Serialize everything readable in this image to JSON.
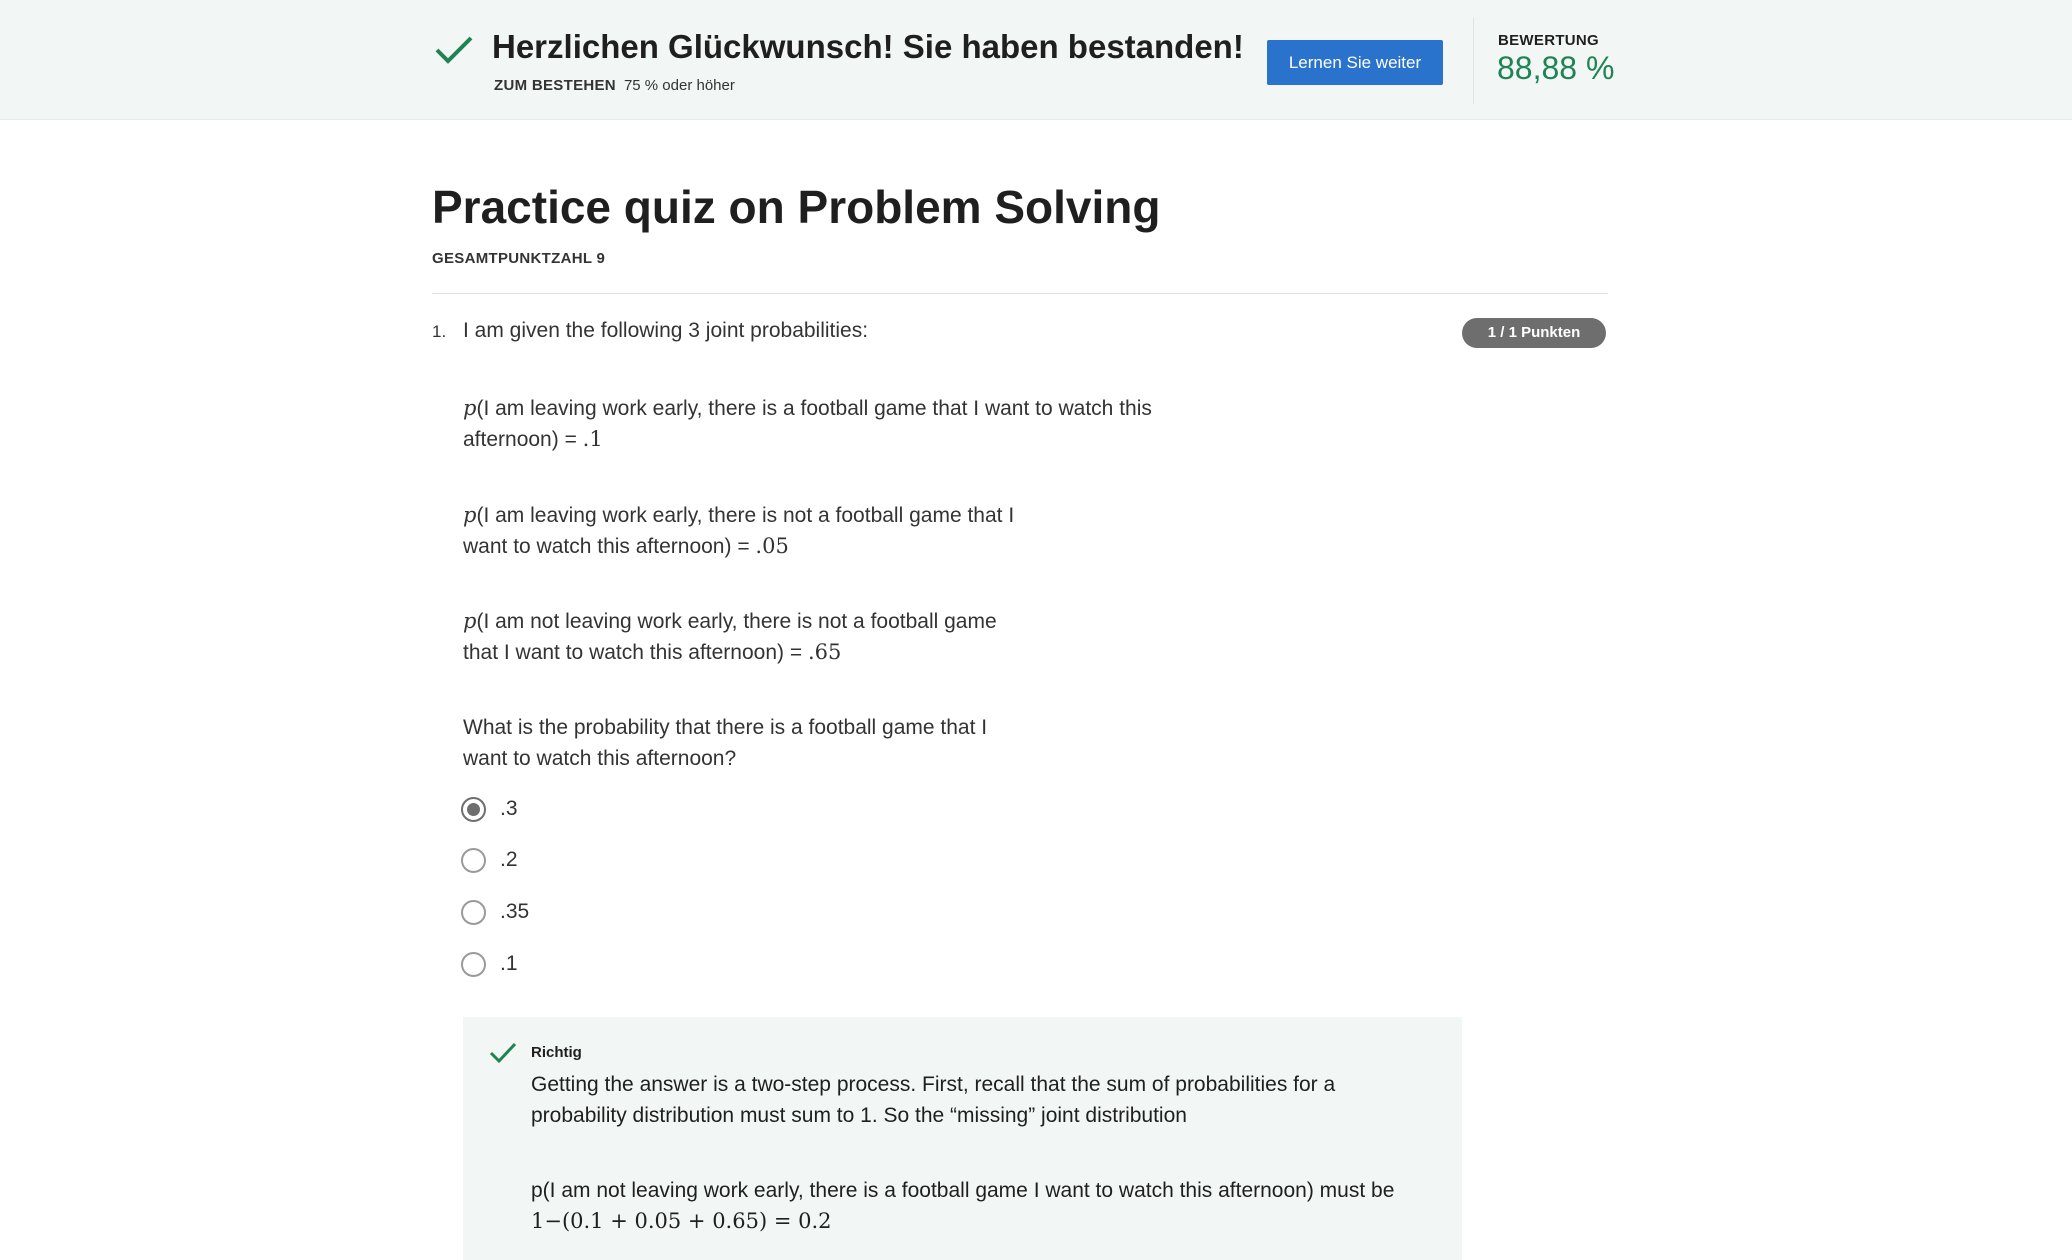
{
  "banner": {
    "title": "Herzlichen Glückwunsch! Sie haben bestanden!",
    "pass_label": "ZUM BESTEHEN",
    "pass_value": "75 % oder höher",
    "continue_button": "Lernen Sie weiter",
    "grade_label": "BEWERTUNG",
    "grade_value": "88,88 %",
    "check_icon": "check-icon",
    "accent_color": "#1f8354"
  },
  "quiz": {
    "title": "Practice quiz on Problem Solving",
    "total_points": "GESAMTPUNKTZAHL 9"
  },
  "question": {
    "number": "1.",
    "intro": "I am given the following 3 joint probabilities:",
    "points": "1 / 1 Punkten",
    "prob_symbol": "p",
    "probabilities": [
      {
        "text": "(I am leaving work early, there is a football game that I want to watch this afternoon) = ",
        "value": ".1"
      },
      {
        "text": "(I am leaving work early, there is not a football game that I want to watch this afternoon) = ",
        "value": ".05"
      },
      {
        "text": "(I am not leaving work early, there is not a football game that I want to watch this afternoon) = ",
        "value": ".65"
      }
    ],
    "prompt": "What is the probability that there is a football game that I want to watch this afternoon?",
    "options": [
      {
        "label": ".3",
        "selected": true
      },
      {
        "label": ".2",
        "selected": false
      },
      {
        "label": ".35",
        "selected": false
      },
      {
        "label": ".1",
        "selected": false
      }
    ]
  },
  "feedback": {
    "label": "Richtig",
    "text1": "Getting the answer is a two-step process. First, recall that the sum of probabilities for a probability distribution must sum to 1. So the “missing” joint distribution",
    "text2": "p(I am not leaving work early, there is a football game I want to watch this afternoon) must be",
    "formula": "1−(0.1 + 0.05 + 0.65) = 0.2"
  }
}
